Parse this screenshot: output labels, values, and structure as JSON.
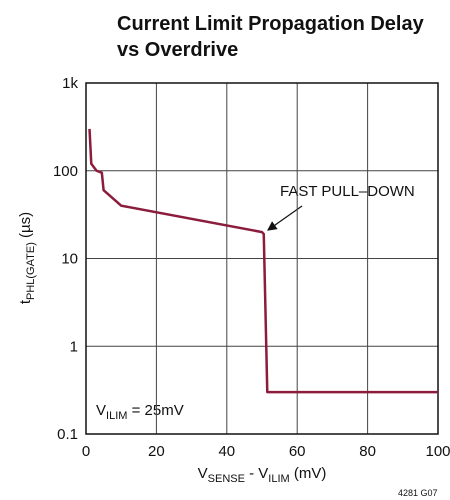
{
  "chart_data": {
    "type": "line",
    "title": [
      "Current Limit Propagation Delay",
      "vs Overdrive"
    ],
    "x_label": {
      "main": "V",
      "sub1": "SENSE",
      "mid": " - V",
      "sub2": "ILIM",
      "rest": "  (mV)"
    },
    "y_label": {
      "main": "t",
      "sub": "PHL(GATE)",
      "rest": " (µs)"
    },
    "annotations": {
      "pulldown": "FAST PULL–DOWN",
      "condition": {
        "main": "V",
        "sub": "ILIM",
        "rest": " = 25mV"
      },
      "figure_id": "4281 G07"
    },
    "series": [
      {
        "name": "tPHL(GATE)",
        "color": "#8c1c3c",
        "x": [
          1,
          1.5,
          3,
          4.5,
          5,
          10,
          50,
          50.5,
          51.5,
          100
        ],
        "values": [
          300,
          120,
          100,
          95,
          60,
          40,
          20,
          19,
          0.3,
          0.3
        ]
      }
    ],
    "xlim": [
      0,
      100
    ],
    "xticks": [
      0,
      20,
      40,
      60,
      80,
      100
    ],
    "ylim": [
      0.1,
      1000
    ],
    "yticks": [
      0.1,
      1,
      10,
      100,
      {
        "value": 1000,
        "label": "1k"
      }
    ],
    "log_y": true,
    "grid": true
  }
}
